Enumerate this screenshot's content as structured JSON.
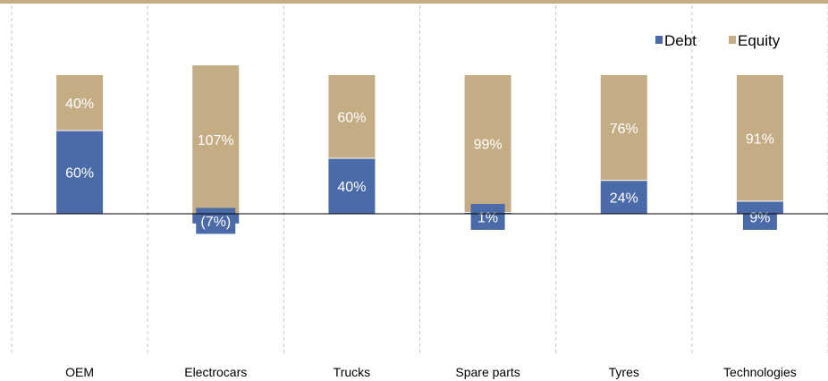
{
  "chart_data": {
    "type": "bar",
    "stacked": true,
    "categories": [
      "OEM",
      "Electrocars",
      "Trucks",
      "Spare parts",
      "Tyres",
      "Technologies"
    ],
    "series": [
      {
        "name": "Debt",
        "values": [
          60,
          -7,
          40,
          1,
          24,
          9
        ],
        "labels": [
          "60%",
          "(7%)",
          "40%",
          "1%",
          "24%",
          "9%"
        ],
        "color": "#4a6aa8"
      },
      {
        "name": "Equity",
        "values": [
          40,
          107,
          60,
          99,
          76,
          91
        ],
        "labels": [
          "40%",
          "107%",
          "60%",
          "99%",
          "76%",
          "91%"
        ],
        "color": "#c4ac85"
      }
    ],
    "ylim": [
      -60,
      110
    ],
    "grid": "vertical dashed separators between categories",
    "legend_position": "top-right",
    "accent_border_color": "#c4ac85"
  }
}
